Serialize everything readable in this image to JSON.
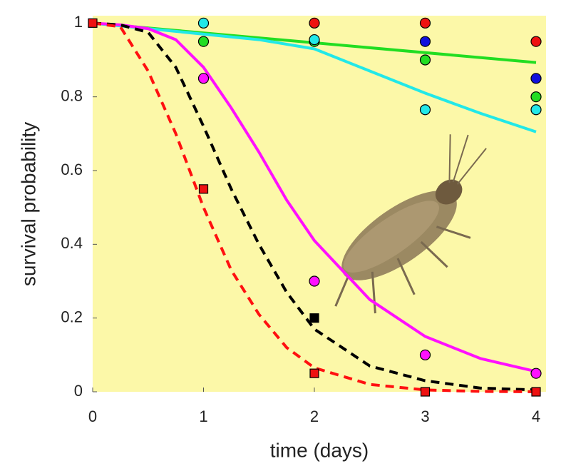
{
  "chart_data": {
    "type": "line",
    "xlabel": "time (days)",
    "ylabel": "survival probability",
    "xlim": [
      0,
      4.09
    ],
    "ylim": [
      0,
      1.02
    ],
    "xticks": [
      0,
      1,
      2,
      3,
      4
    ],
    "yticks": [
      0,
      0.2,
      0.4,
      0.6,
      0.8,
      1
    ],
    "background": "#fcf8a8",
    "series": [
      {
        "color": "#22dd22",
        "x": [
          0,
          4
        ],
        "values": [
          1,
          0.893
        ]
      },
      {
        "color": "#22e8e8",
        "x": [
          0,
          0.5,
          1,
          1.5,
          2,
          2.5,
          3,
          3.5,
          4
        ],
        "values": [
          1,
          0.985,
          0.97,
          0.955,
          0.93,
          0.87,
          0.81,
          0.755,
          0.705
        ]
      },
      {
        "color": "#ff10ff",
        "x": [
          0,
          0.25,
          0.5,
          0.75,
          1,
          1.25,
          1.5,
          1.75,
          2,
          2.5,
          3,
          3.5,
          4
        ],
        "values": [
          1,
          0.995,
          0.985,
          0.955,
          0.88,
          0.77,
          0.65,
          0.52,
          0.41,
          0.25,
          0.15,
          0.09,
          0.055
        ]
      },
      {
        "color": "#000000",
        "dash": true,
        "x": [
          0,
          0.25,
          0.5,
          0.75,
          1,
          1.25,
          1.5,
          1.75,
          2,
          2.5,
          3,
          3.5,
          4
        ],
        "values": [
          1,
          0.995,
          0.975,
          0.88,
          0.72,
          0.55,
          0.4,
          0.27,
          0.17,
          0.07,
          0.03,
          0.01,
          0.005
        ]
      },
      {
        "color": "#ff1010",
        "dash": true,
        "x": [
          0,
          0.25,
          0.5,
          0.75,
          1,
          1.25,
          1.5,
          1.75,
          2,
          2.5,
          3,
          3.5,
          4
        ],
        "values": [
          1,
          0.99,
          0.87,
          0.7,
          0.5,
          0.33,
          0.21,
          0.12,
          0.065,
          0.02,
          0.005,
          0.001,
          0
        ]
      },
      {
        "color": "#ee1111",
        "marker": "circle",
        "x": [
          2,
          3,
          4
        ],
        "values": [
          1,
          1,
          0.95
        ]
      },
      {
        "color": "#1010dd",
        "marker": "circle",
        "x": [
          3,
          4
        ],
        "values": [
          0.95,
          0.85
        ]
      },
      {
        "color": "#22dd22",
        "marker": "circle",
        "x": [
          1,
          2,
          3,
          4
        ],
        "values": [
          0.95,
          0.95,
          0.9,
          0.8
        ]
      },
      {
        "color": "#22e8e8",
        "marker": "circle",
        "x": [
          1,
          2,
          3,
          4
        ],
        "values": [
          1,
          0.955,
          0.765,
          0.765
        ]
      },
      {
        "color": "#ff10ff",
        "marker": "circle",
        "x": [
          1,
          2,
          3,
          4
        ],
        "values": [
          0.85,
          0.3,
          0.1,
          0.05
        ]
      },
      {
        "color": "#000000",
        "marker": "square",
        "x": [
          2
        ],
        "values": [
          0.2
        ]
      },
      {
        "color": "#ee1111",
        "marker": "square",
        "x": [
          0,
          1,
          2,
          3,
          4
        ],
        "values": [
          1,
          0.55,
          0.05,
          0,
          0
        ]
      }
    ]
  }
}
